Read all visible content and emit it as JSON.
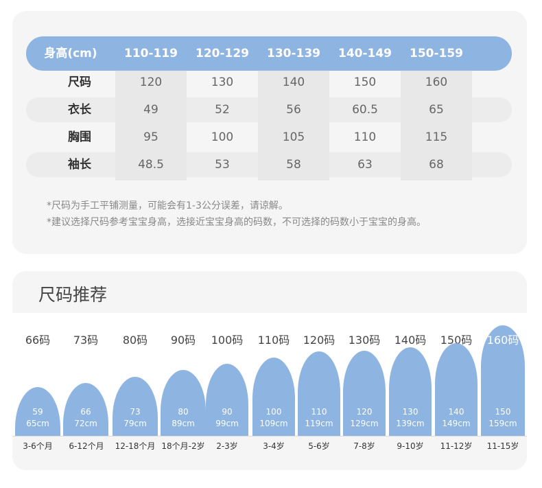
{
  "size_table": {
    "header": {
      "label": "身高(cm)",
      "columns": [
        "110-119",
        "120-129",
        "130-139",
        "140-149",
        "150-159"
      ]
    },
    "rows": [
      {
        "label": "尺码",
        "values": [
          "120",
          "130",
          "140",
          "150",
          "160"
        ]
      },
      {
        "label": "衣长",
        "values": [
          "49",
          "52",
          "56",
          "60.5",
          "65"
        ]
      },
      {
        "label": "胸围",
        "values": [
          "95",
          "100",
          "105",
          "110",
          "115"
        ]
      },
      {
        "label": "袖长",
        "values": [
          "48.5",
          "53",
          "58",
          "63",
          "68"
        ]
      }
    ],
    "notes": [
      "*尺码为手工平铺测量，可能会有1-3公分误差，请谅解。",
      "*建议选择尺码参考宝宝身高，选接近宝宝身高的码数，不可选择的码数小于宝宝的身高。"
    ]
  },
  "recommendation": {
    "title": "尺码推荐",
    "items": [
      {
        "size": "66码",
        "range_low": "59",
        "range_high": "65cm",
        "age": "3-6个月"
      },
      {
        "size": "73码",
        "range_low": "66",
        "range_high": "72cm",
        "age": "6-12个月"
      },
      {
        "size": "80码",
        "range_low": "73",
        "range_high": "79cm",
        "age": "12-18个月"
      },
      {
        "size": "90码",
        "range_low": "80",
        "range_high": "89cm",
        "age": "18个月-2岁"
      },
      {
        "size": "100码",
        "range_low": "90",
        "range_high": "99cm",
        "age": "2-3岁"
      },
      {
        "size": "110码",
        "range_low": "100",
        "range_high": "109cm",
        "age": "3-4岁"
      },
      {
        "size": "120码",
        "range_low": "110",
        "range_high": "119cm",
        "age": "5-6岁"
      },
      {
        "size": "130码",
        "range_low": "120",
        "range_high": "129cm",
        "age": "7-8岁"
      },
      {
        "size": "140码",
        "range_low": "130",
        "range_high": "139cm",
        "age": "9-10岁"
      },
      {
        "size": "150码",
        "range_low": "140",
        "range_high": "149cm",
        "age": "11-12岁"
      },
      {
        "size": "160码",
        "range_low": "150",
        "range_high": "159cm",
        "age": "11-15岁"
      }
    ]
  },
  "colors": {
    "accent": "#8eb4e1",
    "card": "#f5f5f5",
    "band": "#ececec"
  }
}
